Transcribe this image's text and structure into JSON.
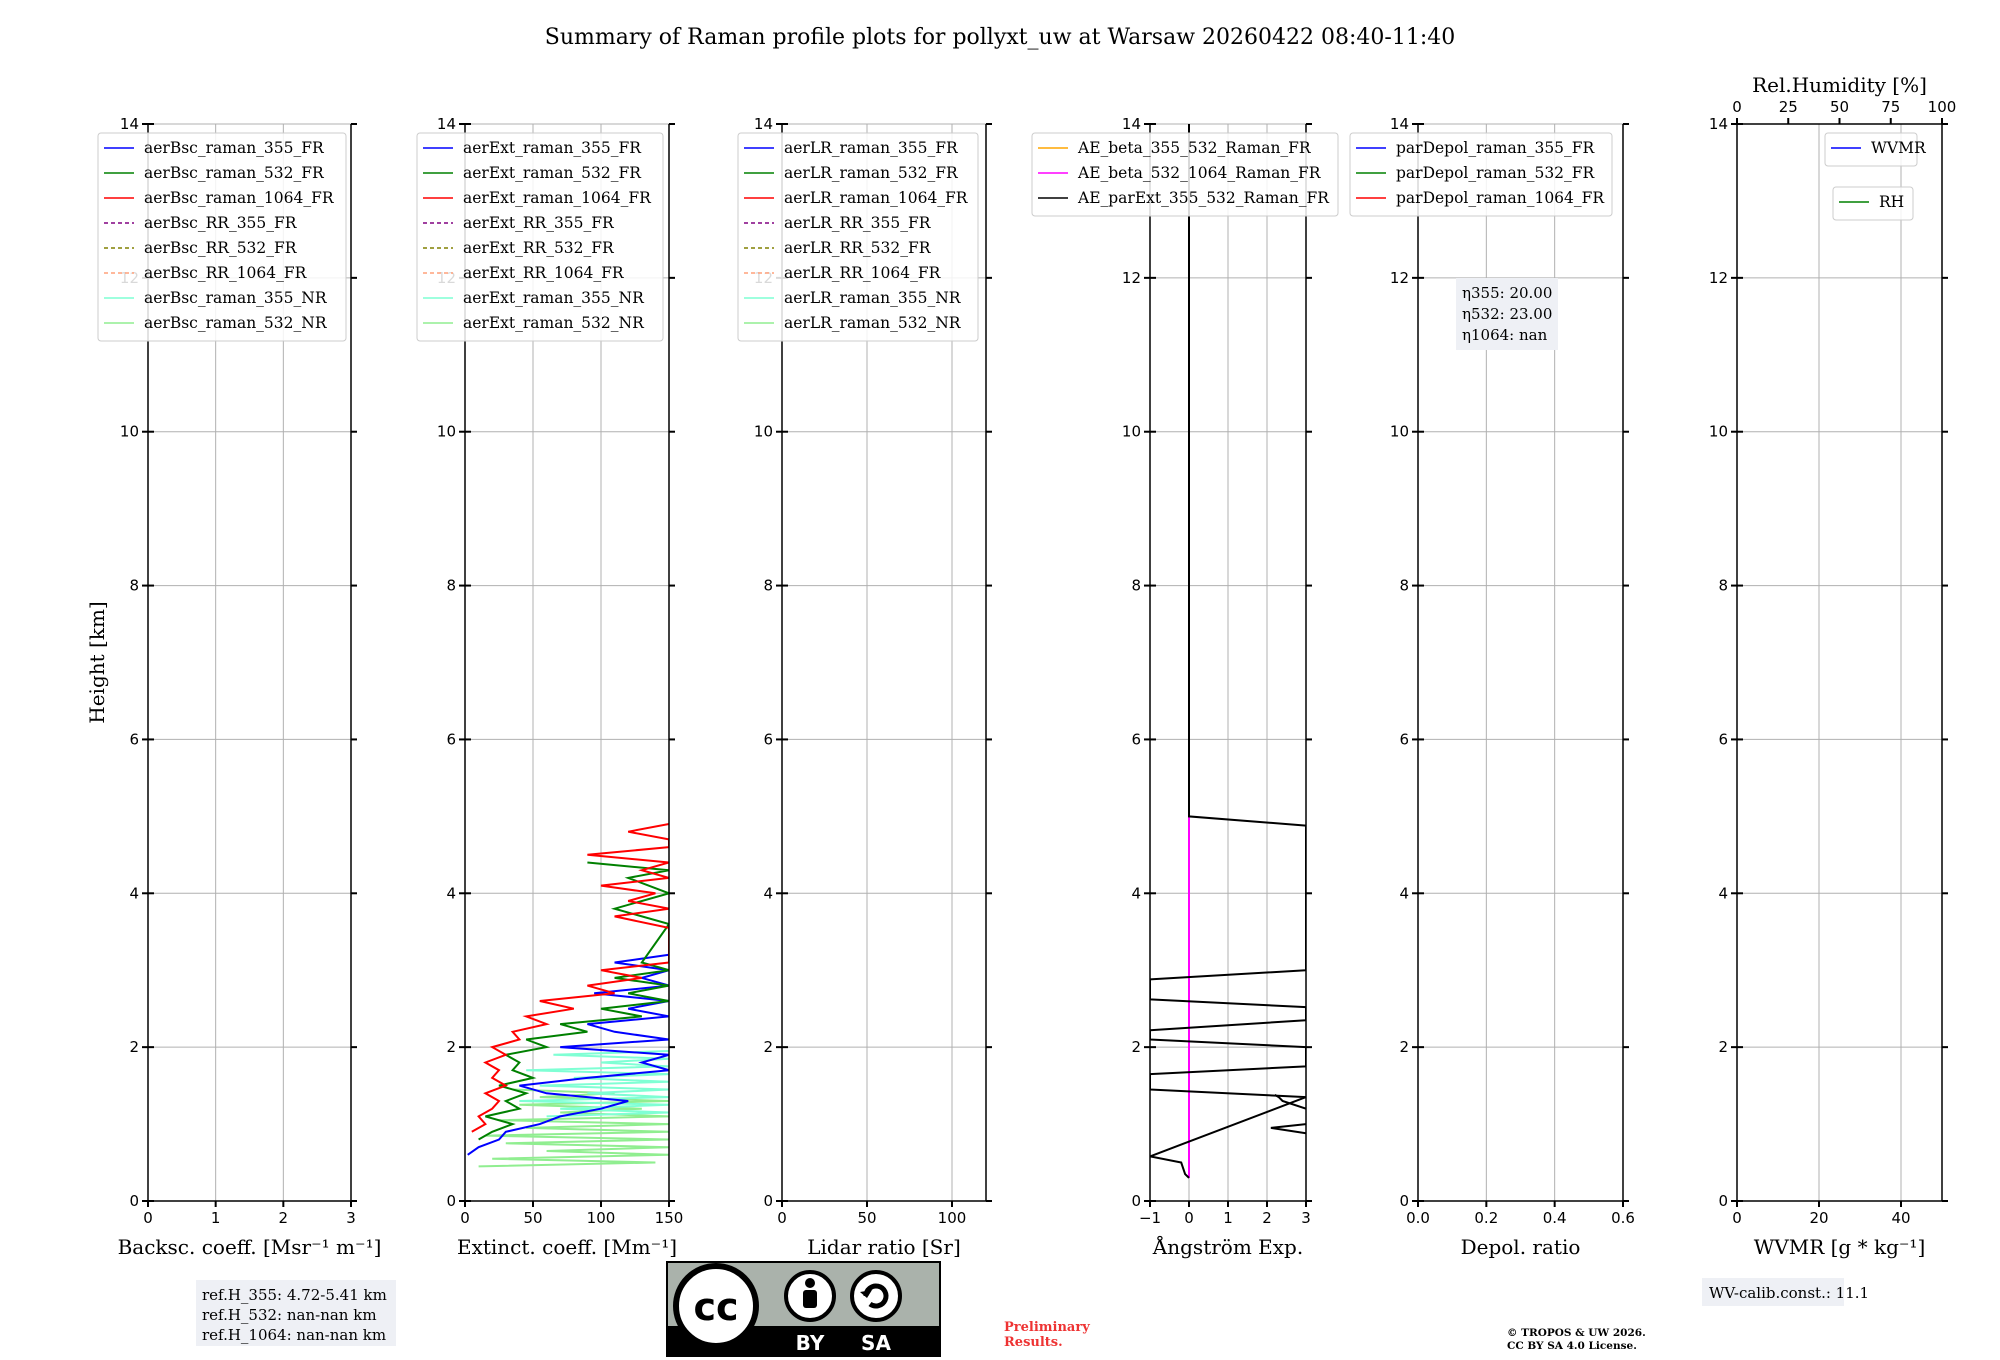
{
  "title": "Summary of Raman profile plots for pollyxt_uw at Warsaw 20260422 08:40-11:40",
  "colors": {
    "blue": "#0000ff",
    "green": "#008000",
    "red": "#ff0000",
    "purple": "#800080",
    "olive": "#808000",
    "salmon": "#ffa07a",
    "cyan": "#7fffd4",
    "lightgreen": "#90ee90",
    "orange": "#ffa500",
    "magenta": "#ff00ff",
    "black": "#000000"
  },
  "chart_data": [
    {
      "type": "line",
      "id": "bsc",
      "xlabel": "Backsc. coeff. [Msr⁻¹ m⁻¹]",
      "ylabel": "Height [km]",
      "xlim": [
        0,
        3
      ],
      "ylim": [
        0,
        14
      ],
      "xticks": [
        0,
        1,
        2,
        3
      ],
      "yticks": [
        0,
        2,
        4,
        6,
        8,
        10,
        12,
        14
      ],
      "legend": [
        {
          "label": "aerBsc_raman_355_FR",
          "color": "blue",
          "dash": false
        },
        {
          "label": "aerBsc_raman_532_FR",
          "color": "green",
          "dash": false
        },
        {
          "label": "aerBsc_raman_1064_FR",
          "color": "red",
          "dash": false
        },
        {
          "label": "aerBsc_RR_355_FR",
          "color": "purple",
          "dash": true
        },
        {
          "label": "aerBsc_RR_532_FR",
          "color": "olive",
          "dash": true
        },
        {
          "label": "aerBsc_RR_1064_FR",
          "color": "salmon",
          "dash": true
        },
        {
          "label": "aerBsc_raman_355_NR",
          "color": "cyan",
          "dash": false
        },
        {
          "label": "aerBsc_raman_532_NR",
          "color": "lightgreen",
          "dash": false
        }
      ],
      "series": []
    },
    {
      "type": "line",
      "id": "ext",
      "xlabel": "Extinct. coeff. [Mm⁻¹]",
      "xlim": [
        0,
        150
      ],
      "ylim": [
        0,
        14
      ],
      "xticks": [
        0,
        50,
        100,
        150
      ],
      "yticks": [
        0,
        2,
        4,
        6,
        8,
        10,
        12,
        14
      ],
      "legend": [
        {
          "label": "aerExt_raman_355_FR",
          "color": "blue",
          "dash": false
        },
        {
          "label": "aerExt_raman_532_FR",
          "color": "green",
          "dash": false
        },
        {
          "label": "aerExt_raman_1064_FR",
          "color": "red",
          "dash": false
        },
        {
          "label": "aerExt_RR_355_FR",
          "color": "purple",
          "dash": true
        },
        {
          "label": "aerExt_RR_532_FR",
          "color": "olive",
          "dash": true
        },
        {
          "label": "aerExt_RR_1064_FR",
          "color": "salmon",
          "dash": true
        },
        {
          "label": "aerExt_raman_355_NR",
          "color": "cyan",
          "dash": false
        },
        {
          "label": "aerExt_raman_532_NR",
          "color": "lightgreen",
          "dash": false
        }
      ],
      "series": [
        {
          "name": "aerExt_raman_532_NR",
          "color": "lightgreen",
          "y": [
            0.45,
            0.5,
            0.55,
            0.6,
            0.65,
            0.7,
            0.75,
            0.8,
            0.85,
            0.9,
            0.95,
            1.0,
            1.05,
            1.1,
            1.15,
            1.2,
            1.25,
            1.3,
            1.35,
            1.4,
            1.45
          ],
          "x": [
            10,
            140,
            20,
            150,
            60,
            150,
            30,
            150,
            15,
            150,
            45,
            150,
            25,
            150,
            70,
            130,
            40,
            150,
            55,
            110,
            35
          ]
        },
        {
          "name": "aerExt_raman_355_NR",
          "color": "cyan",
          "y": [
            1.1,
            1.15,
            1.2,
            1.25,
            1.3,
            1.35,
            1.4,
            1.45,
            1.5,
            1.55,
            1.6,
            1.65,
            1.7,
            1.75,
            1.8,
            1.85,
            1.9,
            1.95
          ],
          "x": [
            60,
            150,
            70,
            150,
            40,
            150,
            90,
            150,
            55,
            150,
            80,
            150,
            45,
            150,
            100,
            150,
            65,
            150
          ]
        },
        {
          "name": "aerExt_raman_355_FR",
          "color": "blue",
          "y": [
            0.6,
            0.7,
            0.8,
            0.9,
            1.0,
            1.1,
            1.2,
            1.3,
            1.4,
            1.5,
            1.6,
            1.7,
            1.8,
            1.9,
            2.0,
            2.1,
            2.2,
            2.3,
            2.4,
            2.5,
            2.6,
            2.7,
            2.8,
            2.9,
            3.0,
            3.1,
            3.2
          ],
          "x": [
            2,
            10,
            25,
            30,
            55,
            70,
            100,
            120,
            60,
            40,
            90,
            150,
            130,
            150,
            70,
            150,
            110,
            90,
            150,
            120,
            150,
            95,
            150,
            130,
            150,
            110,
            150
          ]
        },
        {
          "name": "aerExt_raman_532_FR",
          "color": "green",
          "y": [
            0.8,
            0.9,
            1.0,
            1.1,
            1.2,
            1.3,
            1.4,
            1.5,
            1.6,
            1.7,
            1.8,
            1.9,
            2.0,
            2.1,
            2.2,
            2.3,
            2.4,
            2.5,
            2.6,
            2.7,
            2.8,
            2.9,
            3.0,
            3.1,
            3.6,
            3.8,
            4.0,
            4.2,
            4.3,
            4.4
          ],
          "x": [
            10,
            20,
            35,
            15,
            40,
            30,
            45,
            25,
            50,
            35,
            40,
            30,
            60,
            45,
            90,
            70,
            130,
            100,
            150,
            120,
            150,
            110,
            150,
            130,
            150,
            110,
            150,
            120,
            150,
            90
          ]
        },
        {
          "name": "aerExt_raman_1064_FR",
          "color": "red",
          "y": [
            0.9,
            1.0,
            1.1,
            1.2,
            1.3,
            1.4,
            1.5,
            1.6,
            1.7,
            1.8,
            1.9,
            2.0,
            2.1,
            2.2,
            2.3,
            2.4,
            2.5,
            2.6,
            2.7,
            2.8,
            2.9,
            3.0,
            3.1,
            3.55,
            3.7,
            3.8,
            3.9,
            4.0,
            4.1,
            4.2,
            4.3,
            4.4,
            4.5,
            4.6,
            4.7,
            4.8,
            4.9
          ],
          "x": [
            5,
            15,
            10,
            20,
            25,
            15,
            30,
            20,
            25,
            15,
            30,
            20,
            40,
            35,
            60,
            45,
            80,
            55,
            110,
            90,
            130,
            100,
            150,
            150,
            110,
            150,
            120,
            140,
            100,
            150,
            130,
            150,
            90,
            150,
            150,
            120,
            150
          ]
        }
      ]
    },
    {
      "type": "line",
      "id": "lr",
      "xlabel": "Lidar ratio [Sr]",
      "xlim": [
        0,
        120
      ],
      "ylim": [
        0,
        14
      ],
      "xticks": [
        0,
        50,
        100
      ],
      "yticks": [
        0,
        2,
        4,
        6,
        8,
        10,
        12,
        14
      ],
      "legend": [
        {
          "label": "aerLR_raman_355_FR",
          "color": "blue",
          "dash": false
        },
        {
          "label": "aerLR_raman_532_FR",
          "color": "green",
          "dash": false
        },
        {
          "label": "aerLR_raman_1064_FR",
          "color": "red",
          "dash": false
        },
        {
          "label": "aerLR_RR_355_FR",
          "color": "purple",
          "dash": true
        },
        {
          "label": "aerLR_RR_532_FR",
          "color": "olive",
          "dash": true
        },
        {
          "label": "aerLR_RR_1064_FR",
          "color": "salmon",
          "dash": true
        },
        {
          "label": "aerLR_raman_355_NR",
          "color": "cyan",
          "dash": false
        },
        {
          "label": "aerLR_raman_532_NR",
          "color": "lightgreen",
          "dash": false
        }
      ],
      "series": []
    },
    {
      "type": "line",
      "id": "ae",
      "xlabel": "Ångström Exp.",
      "xlim": [
        -1,
        3
      ],
      "ylim": [
        0,
        14
      ],
      "xticks": [
        -1,
        0,
        1,
        2,
        3
      ],
      "yticks": [
        0,
        2,
        4,
        6,
        8,
        10,
        12,
        14
      ],
      "legend": [
        {
          "label": "AE_beta_355_532_Raman_FR",
          "color": "orange",
          "dash": false
        },
        {
          "label": "AE_beta_532_1064_Raman_FR",
          "color": "magenta",
          "dash": false
        },
        {
          "label": "AE_parExt_355_532_Raman_FR",
          "color": "black",
          "dash": false
        }
      ],
      "series": [
        {
          "name": "AE_beta_532_1064_Raman_FR",
          "color": "magenta",
          "y": [
            0.3,
            5.0
          ],
          "x": [
            0,
            0
          ]
        },
        {
          "name": "AE_parExt_355_532_Raman_FR",
          "color": "black",
          "y": [
            0.3,
            0.35,
            0.5,
            0.58,
            1.35,
            1.45,
            1.65,
            1.75,
            2.0,
            2.1,
            2.22,
            2.35,
            2.52,
            2.62,
            2.88,
            3.0,
            4.88,
            5.0,
            14.0
          ],
          "x": [
            0,
            -0.1,
            -0.2,
            -1,
            3,
            -1,
            -1,
            3,
            3,
            -1,
            -1,
            3,
            3,
            -1,
            -1,
            3,
            3,
            0,
            0
          ]
        },
        {
          "name": "AE_parExt_355_532_Raman_FR_low",
          "color": "black",
          "y": [
            1.2,
            1.3,
            1.35,
            1.38
          ],
          "x": [
            3,
            2.4,
            2.3,
            2.2
          ]
        },
        {
          "name": "AE_parExt_355_532_Raman_FR_spike",
          "color": "black",
          "y": [
            0.88,
            0.95,
            1.0
          ],
          "x": [
            3,
            2.1,
            3
          ]
        }
      ]
    },
    {
      "type": "line",
      "id": "depol",
      "xlabel": "Depol. ratio",
      "xlim": [
        0,
        0.6
      ],
      "ylim": [
        0,
        14
      ],
      "xticks": [
        0.0,
        0.2,
        0.4,
        0.6
      ],
      "xticklabels": [
        "0.0",
        "0.2",
        "0.4",
        "0.6"
      ],
      "yticks": [
        0,
        2,
        4,
        6,
        8,
        10,
        12,
        14
      ],
      "legend": [
        {
          "label": "parDepol_raman_355_FR",
          "color": "blue",
          "dash": false
        },
        {
          "label": "parDepol_raman_532_FR",
          "color": "green",
          "dash": false
        },
        {
          "label": "parDepol_raman_1064_FR",
          "color": "red",
          "dash": false
        }
      ],
      "series": []
    },
    {
      "type": "line",
      "id": "wv",
      "xlabel": "WVMR [g * kg⁻¹]",
      "top_xlabel": "Rel.Humidity [%]",
      "xlim": [
        0,
        50
      ],
      "ylim": [
        0,
        14
      ],
      "xticks": [
        0,
        20,
        40
      ],
      "top_xlim": [
        0,
        100
      ],
      "top_xticks": [
        0,
        25,
        50,
        75,
        100
      ],
      "yticks": [
        0,
        2,
        4,
        6,
        8,
        10,
        12,
        14
      ],
      "legend": [
        {
          "label": "WVMR",
          "color": "blue",
          "dash": false
        }
      ],
      "legend2": [
        {
          "label": "RH",
          "color": "green",
          "dash": false
        }
      ],
      "series": []
    }
  ],
  "annotations": {
    "eta": [
      "η355: 20.00",
      "η532: 23.00",
      "η1064: nan"
    ],
    "ref": [
      "ref.H_355: 4.72-5.41 km",
      "ref.H_532: nan-nan km",
      "ref.H_1064: nan-nan km"
    ],
    "wvcalib": "WV-calib.const.: 11.1",
    "preliminary": [
      "Preliminary",
      "Results."
    ],
    "copyright": [
      "© TROPOS & UW 2026.",
      "CC BY SA 4.0 License."
    ],
    "license_badge": {
      "cc": "cc",
      "by": "BY",
      "sa": "SA"
    }
  }
}
